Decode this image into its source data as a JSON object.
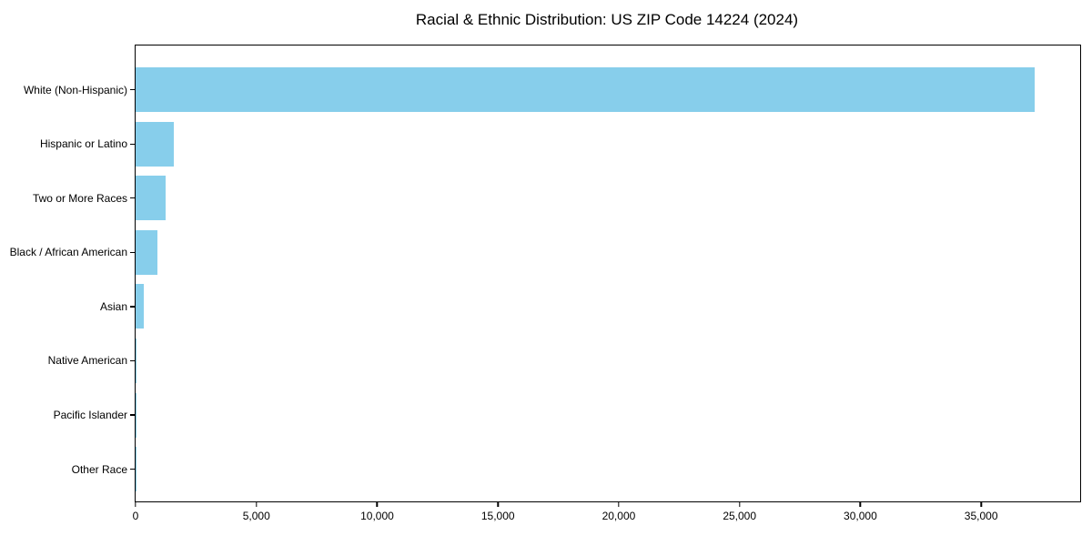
{
  "chart_data": {
    "type": "bar",
    "orientation": "horizontal",
    "title": "Racial & Ethnic Distribution: US ZIP Code 14224 (2024)",
    "categories": [
      "White (Non-Hispanic)",
      "Hispanic or Latino",
      "Two or More Races",
      "Black / African American",
      "Asian",
      "Native American",
      "Pacific Islander",
      "Other Race"
    ],
    "values": [
      37200,
      1600,
      1230,
      890,
      330,
      30,
      10,
      20
    ],
    "bar_color": "#87CEEB",
    "xlabel": "",
    "ylabel": "",
    "xlim": [
      0,
      39100
    ],
    "x_ticks": [
      0,
      5000,
      10000,
      15000,
      20000,
      25000,
      30000,
      35000
    ],
    "x_tick_labels": [
      "0",
      "5,000",
      "10,000",
      "15,000",
      "20,000",
      "25,000",
      "30,000",
      "35,000"
    ],
    "grid": false,
    "legend": null,
    "frame": "full-box",
    "text_color": "#000000",
    "background_color": "#ffffff"
  }
}
